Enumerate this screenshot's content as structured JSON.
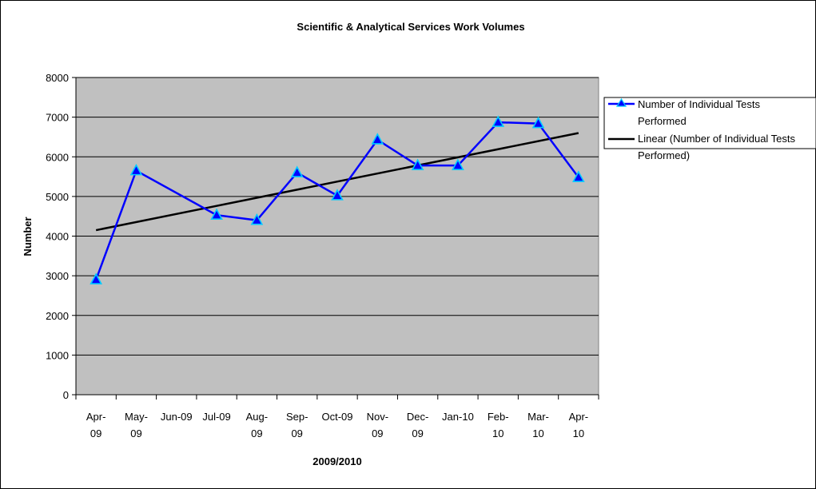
{
  "chart_data": {
    "type": "line",
    "title": "Scientific & Analytical Services Work Volumes",
    "xlabel": "2009/2010",
    "ylabel": "Number",
    "ylim": [
      0,
      8000
    ],
    "yticks": [
      "0",
      "1000",
      "2000",
      "3000",
      "4000",
      "5000",
      "6000",
      "7000",
      "8000"
    ],
    "categories": [
      [
        "Apr-",
        "09"
      ],
      [
        "May-",
        "09"
      ],
      [
        "Jun-09"
      ],
      [
        "Jul-09"
      ],
      [
        "Aug-",
        "09"
      ],
      [
        "Sep-",
        "09"
      ],
      [
        "Oct-09"
      ],
      [
        "Nov-",
        "09"
      ],
      [
        "Dec-",
        "09"
      ],
      [
        "Jan-10"
      ],
      [
        "Feb-",
        "10"
      ],
      [
        "Mar-",
        "10"
      ],
      [
        "Apr-",
        "10"
      ]
    ],
    "series": [
      {
        "name": "Number of Individual Tests Performed",
        "legend_lines": [
          "Number of Individual Tests",
          "Performed"
        ],
        "color": "#0000ff",
        "marker_color": "#00ccff",
        "values": [
          2900,
          5650,
          null,
          4530,
          4400,
          5600,
          5020,
          6430,
          5780,
          5780,
          6870,
          6840,
          5480
        ]
      }
    ],
    "trendline": {
      "name": "Linear (Number of Individual Tests Performed)",
      "legend_lines": [
        "Linear (Number of Individual Tests",
        "Performed)"
      ],
      "color": "#000000",
      "start": 4150,
      "end": 6600
    },
    "grid": true,
    "plot_background": "#c0c0c0",
    "legend_position": "right"
  }
}
